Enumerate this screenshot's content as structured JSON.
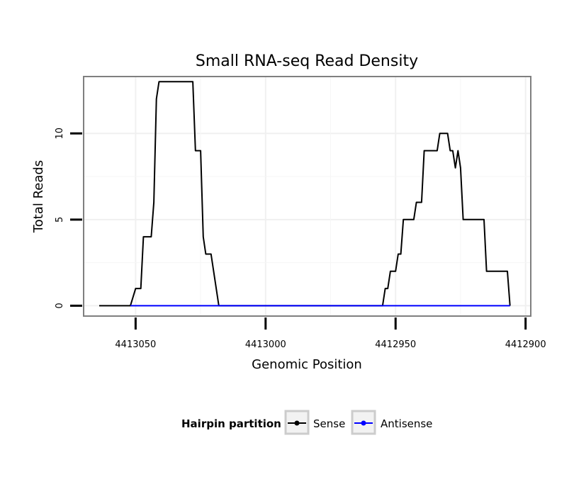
{
  "chart_data": {
    "type": "line",
    "title": "Small RNA-seq Read Density",
    "xlabel": "Genomic Position",
    "ylabel": "Total Reads",
    "xlim": [
      4413070,
      4412898
    ],
    "ylim": [
      -0.6,
      13.3
    ],
    "x_reversed": true,
    "xticks": [
      4413050,
      4413000,
      4412950,
      4412900
    ],
    "xtick_labels": [
      "4413050",
      "4413000",
      "4412950",
      "4412900"
    ],
    "yticks": [
      0,
      5,
      10
    ],
    "ytick_labels": [
      "0",
      "5",
      "10"
    ],
    "grid": true,
    "legend": {
      "title": "Hairpin partition",
      "position": "bottom"
    },
    "series": [
      {
        "name": "Sense",
        "color": "#000000",
        "points": [
          [
            4413064,
            0
          ],
          [
            4413052,
            0
          ],
          [
            4413050,
            1
          ],
          [
            4413048,
            1
          ],
          [
            4413047,
            4
          ],
          [
            4413044,
            4
          ],
          [
            4413043,
            6
          ],
          [
            4413042,
            12
          ],
          [
            4413041,
            13
          ],
          [
            4413028,
            13
          ],
          [
            4413027,
            9
          ],
          [
            4413025,
            9
          ],
          [
            4413024,
            4
          ],
          [
            4413023,
            3
          ],
          [
            4413021,
            3
          ],
          [
            4413018,
            0
          ],
          [
            4412955,
            0
          ],
          [
            4412954,
            1
          ],
          [
            4412953,
            1
          ],
          [
            4412952,
            2
          ],
          [
            4412950,
            2
          ],
          [
            4412949,
            3
          ],
          [
            4412948,
            3
          ],
          [
            4412947,
            5
          ],
          [
            4412943,
            5
          ],
          [
            4412942,
            6
          ],
          [
            4412940,
            6
          ],
          [
            4412939,
            9
          ],
          [
            4412934,
            9
          ],
          [
            4412933,
            10
          ],
          [
            4412930,
            10
          ],
          [
            4412929,
            9
          ],
          [
            4412928,
            9
          ],
          [
            4412927,
            8
          ],
          [
            4412926,
            9
          ],
          [
            4412925,
            8
          ],
          [
            4412924,
            5
          ],
          [
            4412916,
            5
          ],
          [
            4412915,
            2
          ],
          [
            4412907,
            2
          ],
          [
            4412906,
            0
          ]
        ]
      },
      {
        "name": "Antisense",
        "color": "#0000ff",
        "points": [
          [
            4413052,
            0
          ],
          [
            4413018,
            0
          ],
          [
            4412955,
            0
          ],
          [
            4412906,
            0
          ]
        ]
      }
    ]
  }
}
